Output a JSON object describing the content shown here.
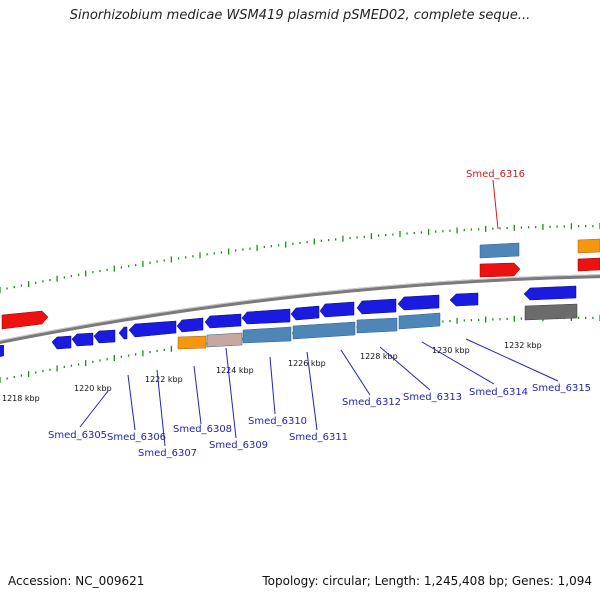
{
  "title": "Sinorhizobium medicae WSM419 plasmid pSMED02, complete seque...",
  "footer": {
    "accession": "Accession: NC_009621",
    "summary": "Topology: circular; Length: 1,245,408 bp; Genes: 1,094"
  },
  "colors": {
    "backbone": "#7a7a7a",
    "tick": "#1f8a1f",
    "gene_blue": "#1a1ae0",
    "gene_steel": "#4f86b8",
    "gene_red": "#ee1111",
    "gene_orange": "#f5960f",
    "gene_gray": "#6b6b6b",
    "label_blue": "#2323b8",
    "label_red": "#d11a1a"
  },
  "scale_labels": [
    "1218 kbp",
    "1220 kbp",
    "1222 kbp",
    "1224 kbp",
    "1226 kbp",
    "1228 kbp",
    "1230 kbp",
    "1232 kbp"
  ],
  "gene_labels": [
    "Smed_6305",
    "Smed_6306",
    "Smed_6307",
    "Smed_6308",
    "Smed_6309",
    "Smed_6310",
    "Smed_6311",
    "Smed_6312",
    "Smed_6313",
    "Smed_6314",
    "Smed_6315",
    "Smed_6316"
  ]
}
